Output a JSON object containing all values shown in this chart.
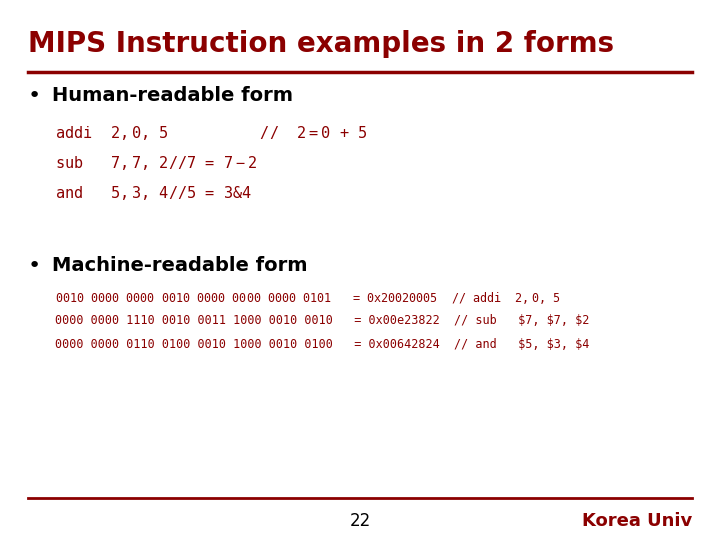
{
  "title": "MIPS Instruction examples in 2 forms",
  "title_color": "#8B0000",
  "bg_color": "#FFFFFF",
  "bullet_color": "#000000",
  "hr_color": "#8B0000",
  "text_color": "#8B0000",
  "bullet1": "Human-readable form",
  "human_lines": [
    "addi  $2, $0, 5          //  $2 = $0 + 5",
    "sub   $7, $7, $2         //  $7 = $7 - $2",
    "and   $5, $3, $4         //  $5 = $3 & $4"
  ],
  "bullet2": "Machine-readable form",
  "machine_lines": [
    "0010 0000 0000 0010 0000 0000 0000 0101   = 0x20020005  // addi  $2, $0, 5",
    "0000 0000 1110 0010 0011 1000 0010 0010   = 0x00e23822  // sub   $7, $7, $2",
    "0000 0000 0110 0100 0010 1000 0010 0100   = 0x00642824  // and   $5, $3, $4"
  ],
  "footer_text": "22",
  "footer_right": "Korea Univ",
  "footer_color": "#8B0000",
  "title_fontsize": 20,
  "bullet_fontsize": 14,
  "human_fontsize": 11,
  "machine_fontsize": 8.5
}
